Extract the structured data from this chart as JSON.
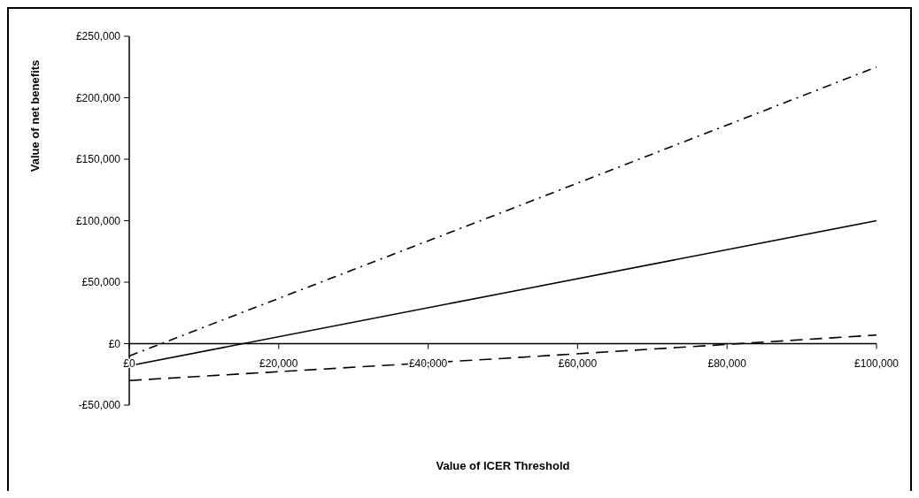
{
  "chart_data": {
    "type": "line",
    "xlabel": "Value of ICER Threshold",
    "ylabel": "Value of net benefits",
    "x": [
      0,
      50000,
      100000
    ],
    "series": [
      {
        "color": "#000000",
        "values": [
          -18000,
          41000,
          100000
        ],
        "line_style": "solid"
      },
      {
        "color": "#000000",
        "values": [
          -10000,
          107000,
          225000
        ],
        "line_style": "dotted"
      },
      {
        "color": "#000000",
        "values": [
          -30000,
          -12000,
          7000
        ],
        "line_style": "dashed"
      }
    ],
    "xlim": [
      0,
      100000
    ],
    "ylim": [
      -50000,
      250000
    ],
    "xticks": [
      {
        "value": 0,
        "label": "£0"
      },
      {
        "value": 20000,
        "label": "£20,000"
      },
      {
        "value": 40000,
        "label": "£40,000"
      },
      {
        "value": 60000,
        "label": "£60,000"
      },
      {
        "value": 80000,
        "label": "£80,000"
      },
      {
        "value": 100000,
        "label": "£100,000"
      }
    ],
    "yticks": [
      {
        "value": -50000,
        "label": "-£50,000"
      },
      {
        "value": 0,
        "label": "£0"
      },
      {
        "value": 50000,
        "label": "£50,000"
      },
      {
        "value": 100000,
        "label": "£100,000"
      },
      {
        "value": 150000,
        "label": "£150,000"
      },
      {
        "value": 200000,
        "label": "£200,000"
      },
      {
        "value": 250000,
        "label": "£250,000"
      }
    ],
    "marker": "none"
  }
}
